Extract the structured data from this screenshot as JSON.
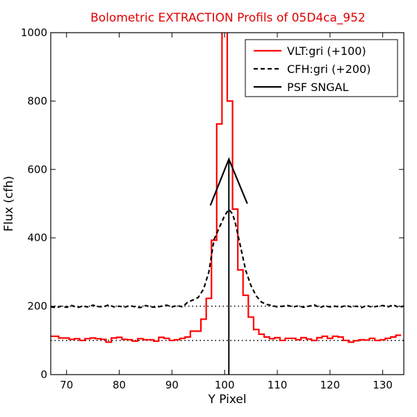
{
  "chart_data": {
    "type": "line",
    "title": "Bolometric EXTRACTION Profils of 05D4ca_952",
    "title_color": "#e00000",
    "xlabel": "Y Pixel",
    "ylabel": "Flux (cfh)",
    "xlim": [
      67,
      134
    ],
    "ylim": [
      0,
      1000
    ],
    "xticks": [
      70,
      80,
      90,
      100,
      110,
      120,
      130
    ],
    "yticks": [
      0,
      200,
      400,
      600,
      800,
      1000
    ],
    "grid": false,
    "legend_position": "top-right",
    "reference_levels": [
      100,
      200
    ],
    "vertical_marker_x": 100.8,
    "series": [
      {
        "name": "VLT:gri (+100)",
        "style": "steps",
        "color": "#ff0000",
        "x": [
          67,
          68,
          69,
          70,
          71,
          72,
          73,
          74,
          75,
          76,
          77,
          78,
          79,
          80,
          81,
          82,
          83,
          84,
          85,
          86,
          87,
          88,
          89,
          90,
          91,
          92,
          93,
          94,
          95,
          96,
          97,
          98,
          99,
          100,
          101,
          102,
          103,
          104,
          105,
          106,
          107,
          108,
          109,
          110,
          111,
          112,
          113,
          114,
          115,
          116,
          117,
          118,
          119,
          120,
          121,
          122,
          123,
          124,
          125,
          126,
          127,
          128,
          129,
          130,
          131,
          132,
          133
        ],
        "y": [
          112,
          112,
          107,
          107,
          103,
          105,
          100,
          105,
          107,
          105,
          103,
          95,
          107,
          109,
          103,
          102,
          98,
          105,
          102,
          102,
          98,
          109,
          106,
          100,
          102,
          106,
          110,
          127,
          127,
          162,
          223,
          393,
          733,
          1010,
          800,
          484,
          306,
          232,
          168,
          132,
          118,
          110,
          105,
          108,
          100,
          106,
          106,
          102,
          108,
          104,
          100,
          108,
          112,
          106,
          112,
          110,
          100,
          95,
          99,
          102,
          101,
          106,
          100,
          102,
          106,
          110,
          115
        ]
      },
      {
        "name": "CFH:gri (+200)",
        "style": "dashed",
        "color": "#000000",
        "x": [
          67,
          68,
          69,
          70,
          71,
          72,
          73,
          74,
          75,
          76,
          77,
          78,
          79,
          80,
          81,
          82,
          83,
          84,
          85,
          86,
          87,
          88,
          89,
          90,
          91,
          92,
          93,
          94,
          95,
          96,
          97,
          98,
          99,
          100,
          100.8,
          101.5,
          102,
          103,
          104,
          105,
          106,
          107,
          108,
          109,
          110,
          111,
          112,
          113,
          114,
          115,
          116,
          117,
          118,
          119,
          120,
          121,
          122,
          123,
          124,
          125,
          126,
          127,
          128,
          129,
          130,
          131,
          132,
          133,
          134
        ],
        "y": [
          198,
          196,
          200,
          197,
          202,
          196,
          200,
          198,
          203,
          199,
          198,
          204,
          198,
          200,
          197,
          202,
          198,
          196,
          202,
          198,
          197,
          200,
          203,
          198,
          202,
          198,
          212,
          218,
          226,
          250,
          300,
          395,
          430,
          465,
          483,
          470,
          445,
          375,
          305,
          260,
          230,
          212,
          205,
          202,
          198,
          200,
          202,
          198,
          201,
          197,
          200,
          204,
          196,
          201,
          198,
          200,
          197,
          202,
          198,
          200,
          196,
          202,
          197,
          200,
          202,
          198,
          204,
          197,
          200
        ]
      },
      {
        "name": "PSF SNGAL",
        "style": "solid",
        "color": "#000000",
        "x": [
          97.3,
          100.8,
          104.3
        ],
        "y": [
          495,
          630,
          500
        ]
      }
    ]
  }
}
